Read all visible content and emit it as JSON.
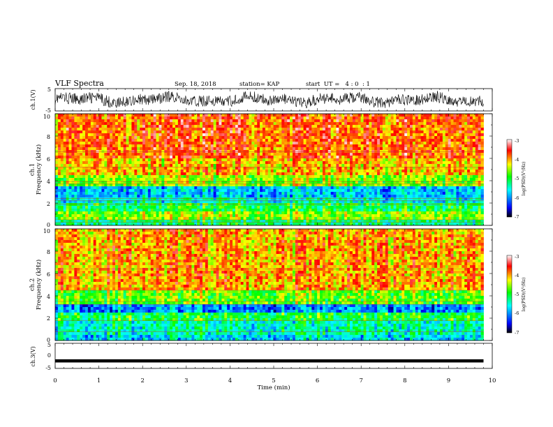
{
  "header": {
    "title": "VLF Spectra",
    "date": "Sep. 18, 2018",
    "station": "station= KAP",
    "start": "start  UT =   4 : 0  : 1"
  },
  "chart_data": [
    {
      "id": "ch1-waveform",
      "type": "line",
      "ylabel": "ch.1(V)",
      "ylim": [
        -5,
        5
      ],
      "yticks": [
        "5",
        "-5"
      ],
      "xlim": [
        0,
        10
      ],
      "data_extent": [
        0,
        9.8
      ],
      "series": [
        {
          "values": "noise waveform, amplitude roughly -4 to 4 V"
        }
      ]
    },
    {
      "id": "ch1-spectrogram",
      "type": "heatmap",
      "ylabel": "ch.1\nFrequency (kHz)",
      "ylim": [
        0,
        10
      ],
      "yticks": [
        "0",
        "2",
        "4",
        "6",
        "8",
        "10"
      ],
      "xlim": [
        0,
        10
      ],
      "data_extent": [
        0,
        9.8
      ],
      "colorbar": {
        "label": "log(PSD)(V²/Hz)",
        "range": [
          -7,
          -3
        ],
        "ticks": [
          "-3",
          "-4",
          "-5",
          "-6",
          "-7"
        ]
      },
      "bands": [
        {
          "f": [
            0.0,
            0.5
          ],
          "level": -5.2
        },
        {
          "f": [
            0.5,
            1.2
          ],
          "level": -4.6
        },
        {
          "f": [
            1.2,
            2.0
          ],
          "level": -5.1
        },
        {
          "f": [
            2.0,
            2.4
          ],
          "level": -5.5
        },
        {
          "f": [
            2.4,
            3.4
          ],
          "level": -5.8
        },
        {
          "f": [
            3.4,
            4.6
          ],
          "level": -4.6
        },
        {
          "f": [
            4.6,
            6.0
          ],
          "level": -4.1
        },
        {
          "f": [
            6.0,
            10.0
          ],
          "level": -3.8
        }
      ],
      "lines_khz": [
        0.3,
        0.5,
        1.9,
        2.2,
        2.4,
        3.7,
        3.9,
        5.2,
        6.6
      ]
    },
    {
      "id": "ch2-spectrogram",
      "type": "heatmap",
      "ylabel": "ch.2\nFrequency (kHz)",
      "ylim": [
        0,
        10
      ],
      "yticks": [
        "0",
        "2",
        "4",
        "6",
        "8",
        "10"
      ],
      "xlim": [
        0,
        10
      ],
      "data_extent": [
        0,
        9.8
      ],
      "colorbar": {
        "label": "log(PSD)(V²/Hz)",
        "range": [
          -7,
          -3
        ],
        "ticks": [
          "-3",
          "-4",
          "-5",
          "-6",
          "-7"
        ]
      },
      "bands": [
        {
          "f": [
            0.0,
            0.6
          ],
          "level": -5.7
        },
        {
          "f": [
            0.6,
            1.8
          ],
          "level": -5.4
        },
        {
          "f": [
            1.8,
            2.6
          ],
          "level": -5.0
        },
        {
          "f": [
            2.6,
            3.2
          ],
          "level": -6.0
        },
        {
          "f": [
            3.2,
            4.5
          ],
          "level": -4.7
        },
        {
          "f": [
            4.5,
            10.0
          ],
          "level": -4.0
        }
      ],
      "lines_khz": [
        0.8,
        1.8,
        3.2,
        3.5,
        4.5,
        6.4
      ]
    },
    {
      "id": "ch3-waveform",
      "type": "line",
      "ylabel": "ch.3(V)",
      "ylim": [
        -5,
        5
      ],
      "yticks": [
        "5",
        "0",
        "-5"
      ],
      "xlim": [
        0,
        10
      ],
      "data_extent": [
        0,
        9.8
      ],
      "series": [
        {
          "values": "flat signal near -2 V"
        }
      ]
    }
  ],
  "xaxis": {
    "label": "Time (min)",
    "ticks": [
      "0",
      "1",
      "2",
      "3",
      "4",
      "5",
      "6",
      "7",
      "8",
      "9",
      "10"
    ]
  },
  "colors": {
    "colormap": [
      "#000000",
      "#0000ff",
      "#00ffff",
      "#00ff00",
      "#ffff00",
      "#ff0000",
      "#ffffff"
    ],
    "trace": "#000000"
  }
}
